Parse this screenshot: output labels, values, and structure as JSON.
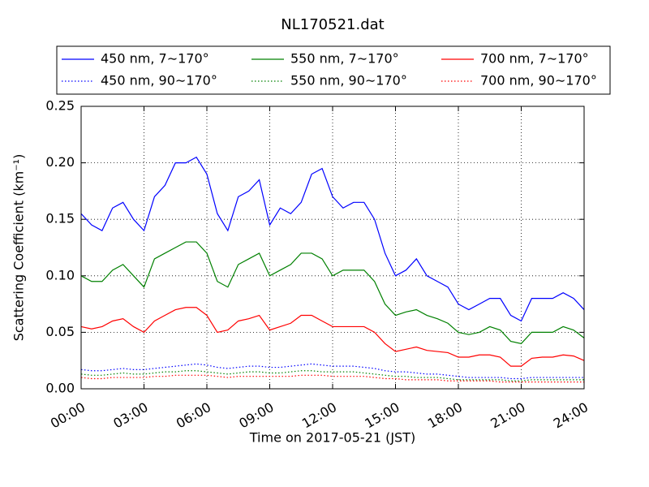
{
  "chart_data": {
    "type": "line",
    "title": "NL170521.dat",
    "xlabel": "Time on 2017-05-21 (JST)",
    "ylabel": "Scattering Coefficient (km⁻¹)",
    "x": [
      0,
      0.5,
      1,
      1.5,
      2,
      2.5,
      3,
      3.5,
      4,
      4.5,
      5,
      5.5,
      6,
      6.5,
      7,
      7.5,
      8,
      8.5,
      9,
      9.5,
      10,
      10.5,
      11,
      11.5,
      12,
      12.5,
      13,
      13.5,
      14,
      14.5,
      15,
      15.5,
      16,
      16.5,
      17,
      17.5,
      18,
      18.5,
      19,
      19.5,
      20,
      20.5,
      21,
      21.5,
      22,
      22.5,
      23,
      23.5,
      24
    ],
    "xlim": [
      0,
      24
    ],
    "xticks": [
      {
        "value": 0,
        "label": "00:00"
      },
      {
        "value": 3,
        "label": "03:00"
      },
      {
        "value": 6,
        "label": "06:00"
      },
      {
        "value": 9,
        "label": "09:00"
      },
      {
        "value": 12,
        "label": "12:00"
      },
      {
        "value": 15,
        "label": "15:00"
      },
      {
        "value": 18,
        "label": "18:00"
      },
      {
        "value": 21,
        "label": "21:00"
      },
      {
        "value": 24,
        "label": "24:00"
      }
    ],
    "ylim": [
      0,
      0.25
    ],
    "yticks": [
      {
        "value": 0,
        "label": "0.00"
      },
      {
        "value": 0.05,
        "label": "0.05"
      },
      {
        "value": 0.1,
        "label": "0.10"
      },
      {
        "value": 0.15,
        "label": "0.15"
      },
      {
        "value": 0.2,
        "label": "0.20"
      },
      {
        "value": 0.25,
        "label": "0.25"
      }
    ],
    "grid": true,
    "legend": "upper center",
    "series": [
      {
        "name": "450 nm, 7∼170°",
        "color": "#0000ff",
        "linestyle": "solid",
        "values": [
          0.155,
          0.145,
          0.14,
          0.16,
          0.165,
          0.15,
          0.14,
          0.17,
          0.18,
          0.2,
          0.2,
          0.205,
          0.19,
          0.155,
          0.14,
          0.17,
          0.175,
          0.185,
          0.145,
          0.16,
          0.155,
          0.165,
          0.19,
          0.195,
          0.17,
          0.16,
          0.165,
          0.165,
          0.15,
          0.12,
          0.1,
          0.105,
          0.115,
          0.1,
          0.095,
          0.09,
          0.075,
          0.07,
          0.075,
          0.08,
          0.08,
          0.065,
          0.06,
          0.08,
          0.08,
          0.08,
          0.085,
          0.08,
          0.07
        ]
      },
      {
        "name": "550 nm, 7∼170°",
        "color": "#008000",
        "linestyle": "solid",
        "values": [
          0.1,
          0.095,
          0.095,
          0.105,
          0.11,
          0.1,
          0.09,
          0.115,
          0.12,
          0.125,
          0.13,
          0.13,
          0.12,
          0.095,
          0.09,
          0.11,
          0.115,
          0.12,
          0.1,
          0.105,
          0.11,
          0.12,
          0.12,
          0.115,
          0.1,
          0.105,
          0.105,
          0.105,
          0.095,
          0.075,
          0.065,
          0.068,
          0.07,
          0.065,
          0.062,
          0.058,
          0.05,
          0.048,
          0.05,
          0.055,
          0.052,
          0.042,
          0.04,
          0.05,
          0.05,
          0.05,
          0.055,
          0.052,
          0.045
        ]
      },
      {
        "name": "700 nm, 7∼170°",
        "color": "#ff0000",
        "linestyle": "solid",
        "values": [
          0.055,
          0.053,
          0.055,
          0.06,
          0.062,
          0.055,
          0.05,
          0.06,
          0.065,
          0.07,
          0.072,
          0.072,
          0.065,
          0.05,
          0.052,
          0.06,
          0.062,
          0.065,
          0.052,
          0.055,
          0.058,
          0.065,
          0.065,
          0.06,
          0.055,
          0.055,
          0.055,
          0.055,
          0.05,
          0.04,
          0.033,
          0.035,
          0.037,
          0.034,
          0.033,
          0.032,
          0.028,
          0.028,
          0.03,
          0.03,
          0.028,
          0.02,
          0.02,
          0.027,
          0.028,
          0.028,
          0.03,
          0.029,
          0.025
        ]
      },
      {
        "name": "450 nm, 90∼170°",
        "color": "#0000ff",
        "linestyle": "dotted",
        "values": [
          0.017,
          0.016,
          0.016,
          0.017,
          0.018,
          0.017,
          0.017,
          0.018,
          0.019,
          0.02,
          0.021,
          0.022,
          0.021,
          0.019,
          0.018,
          0.019,
          0.02,
          0.02,
          0.019,
          0.019,
          0.02,
          0.021,
          0.022,
          0.021,
          0.02,
          0.02,
          0.02,
          0.019,
          0.018,
          0.016,
          0.015,
          0.015,
          0.014,
          0.013,
          0.013,
          0.012,
          0.011,
          0.01,
          0.01,
          0.01,
          0.01,
          0.009,
          0.009,
          0.01,
          0.01,
          0.01,
          0.01,
          0.01,
          0.01
        ]
      },
      {
        "name": "550 nm, 90∼170°",
        "color": "#008000",
        "linestyle": "dotted",
        "values": [
          0.013,
          0.012,
          0.012,
          0.013,
          0.014,
          0.013,
          0.013,
          0.014,
          0.015,
          0.015,
          0.016,
          0.016,
          0.015,
          0.014,
          0.013,
          0.014,
          0.015,
          0.015,
          0.014,
          0.014,
          0.015,
          0.016,
          0.016,
          0.015,
          0.015,
          0.015,
          0.015,
          0.014,
          0.013,
          0.012,
          0.011,
          0.011,
          0.01,
          0.01,
          0.01,
          0.009,
          0.008,
          0.008,
          0.008,
          0.008,
          0.008,
          0.007,
          0.007,
          0.008,
          0.008,
          0.008,
          0.008,
          0.008,
          0.008
        ]
      },
      {
        "name": "700 nm, 90∼170°",
        "color": "#ff0000",
        "linestyle": "dotted",
        "values": [
          0.01,
          0.009,
          0.009,
          0.01,
          0.01,
          0.01,
          0.01,
          0.011,
          0.011,
          0.012,
          0.012,
          0.012,
          0.012,
          0.011,
          0.01,
          0.011,
          0.011,
          0.011,
          0.011,
          0.011,
          0.011,
          0.012,
          0.012,
          0.012,
          0.011,
          0.011,
          0.011,
          0.011,
          0.01,
          0.009,
          0.009,
          0.008,
          0.008,
          0.008,
          0.008,
          0.007,
          0.007,
          0.007,
          0.007,
          0.007,
          0.006,
          0.006,
          0.006,
          0.006,
          0.006,
          0.006,
          0.006,
          0.006,
          0.006
        ]
      }
    ]
  }
}
